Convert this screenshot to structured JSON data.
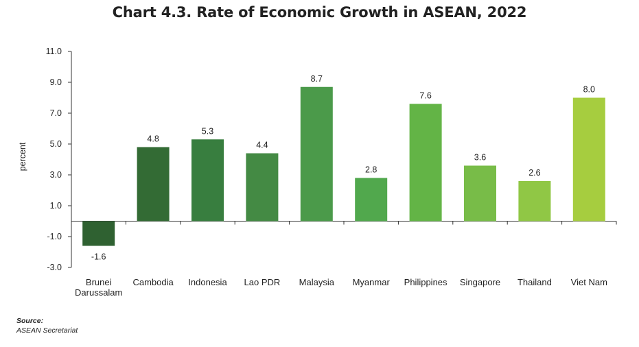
{
  "chart_data": {
    "type": "bar",
    "title": "Chart 4.3. Rate of Economic Growth in ASEAN, 2022",
    "ylabel": "percent",
    "xlabel": "",
    "ylim": [
      -3.0,
      11.0
    ],
    "yticks": [
      "11.0",
      "9.0",
      "7.0",
      "5.0",
      "3.0",
      "1.0",
      "-1.0",
      "-3.0"
    ],
    "categories": [
      [
        "Brunei",
        "Darussalam"
      ],
      [
        "Cambodia"
      ],
      [
        "Indonesia"
      ],
      [
        "Lao PDR"
      ],
      [
        "Malaysia"
      ],
      [
        "Myanmar"
      ],
      [
        "Philippines"
      ],
      [
        "Singapore"
      ],
      [
        "Thailand"
      ],
      [
        "Viet Nam"
      ]
    ],
    "values": [
      -1.6,
      4.8,
      5.3,
      4.4,
      8.7,
      2.8,
      7.6,
      3.6,
      2.6,
      8.0
    ],
    "value_labels": [
      "-1.6",
      "4.8",
      "5.3",
      "4.4",
      "8.7",
      "2.8",
      "7.6",
      "3.6",
      "2.6",
      "8.0"
    ],
    "colors": [
      "#2f6131",
      "#336b34",
      "#387e3f",
      "#448a44",
      "#4b9a4a",
      "#51a84d",
      "#63b446",
      "#78bc48",
      "#90c745",
      "#a6cd3f"
    ],
    "grid": false,
    "legend": "none"
  },
  "source": {
    "heading": "Source:",
    "text": "ASEAN Secretariat"
  }
}
